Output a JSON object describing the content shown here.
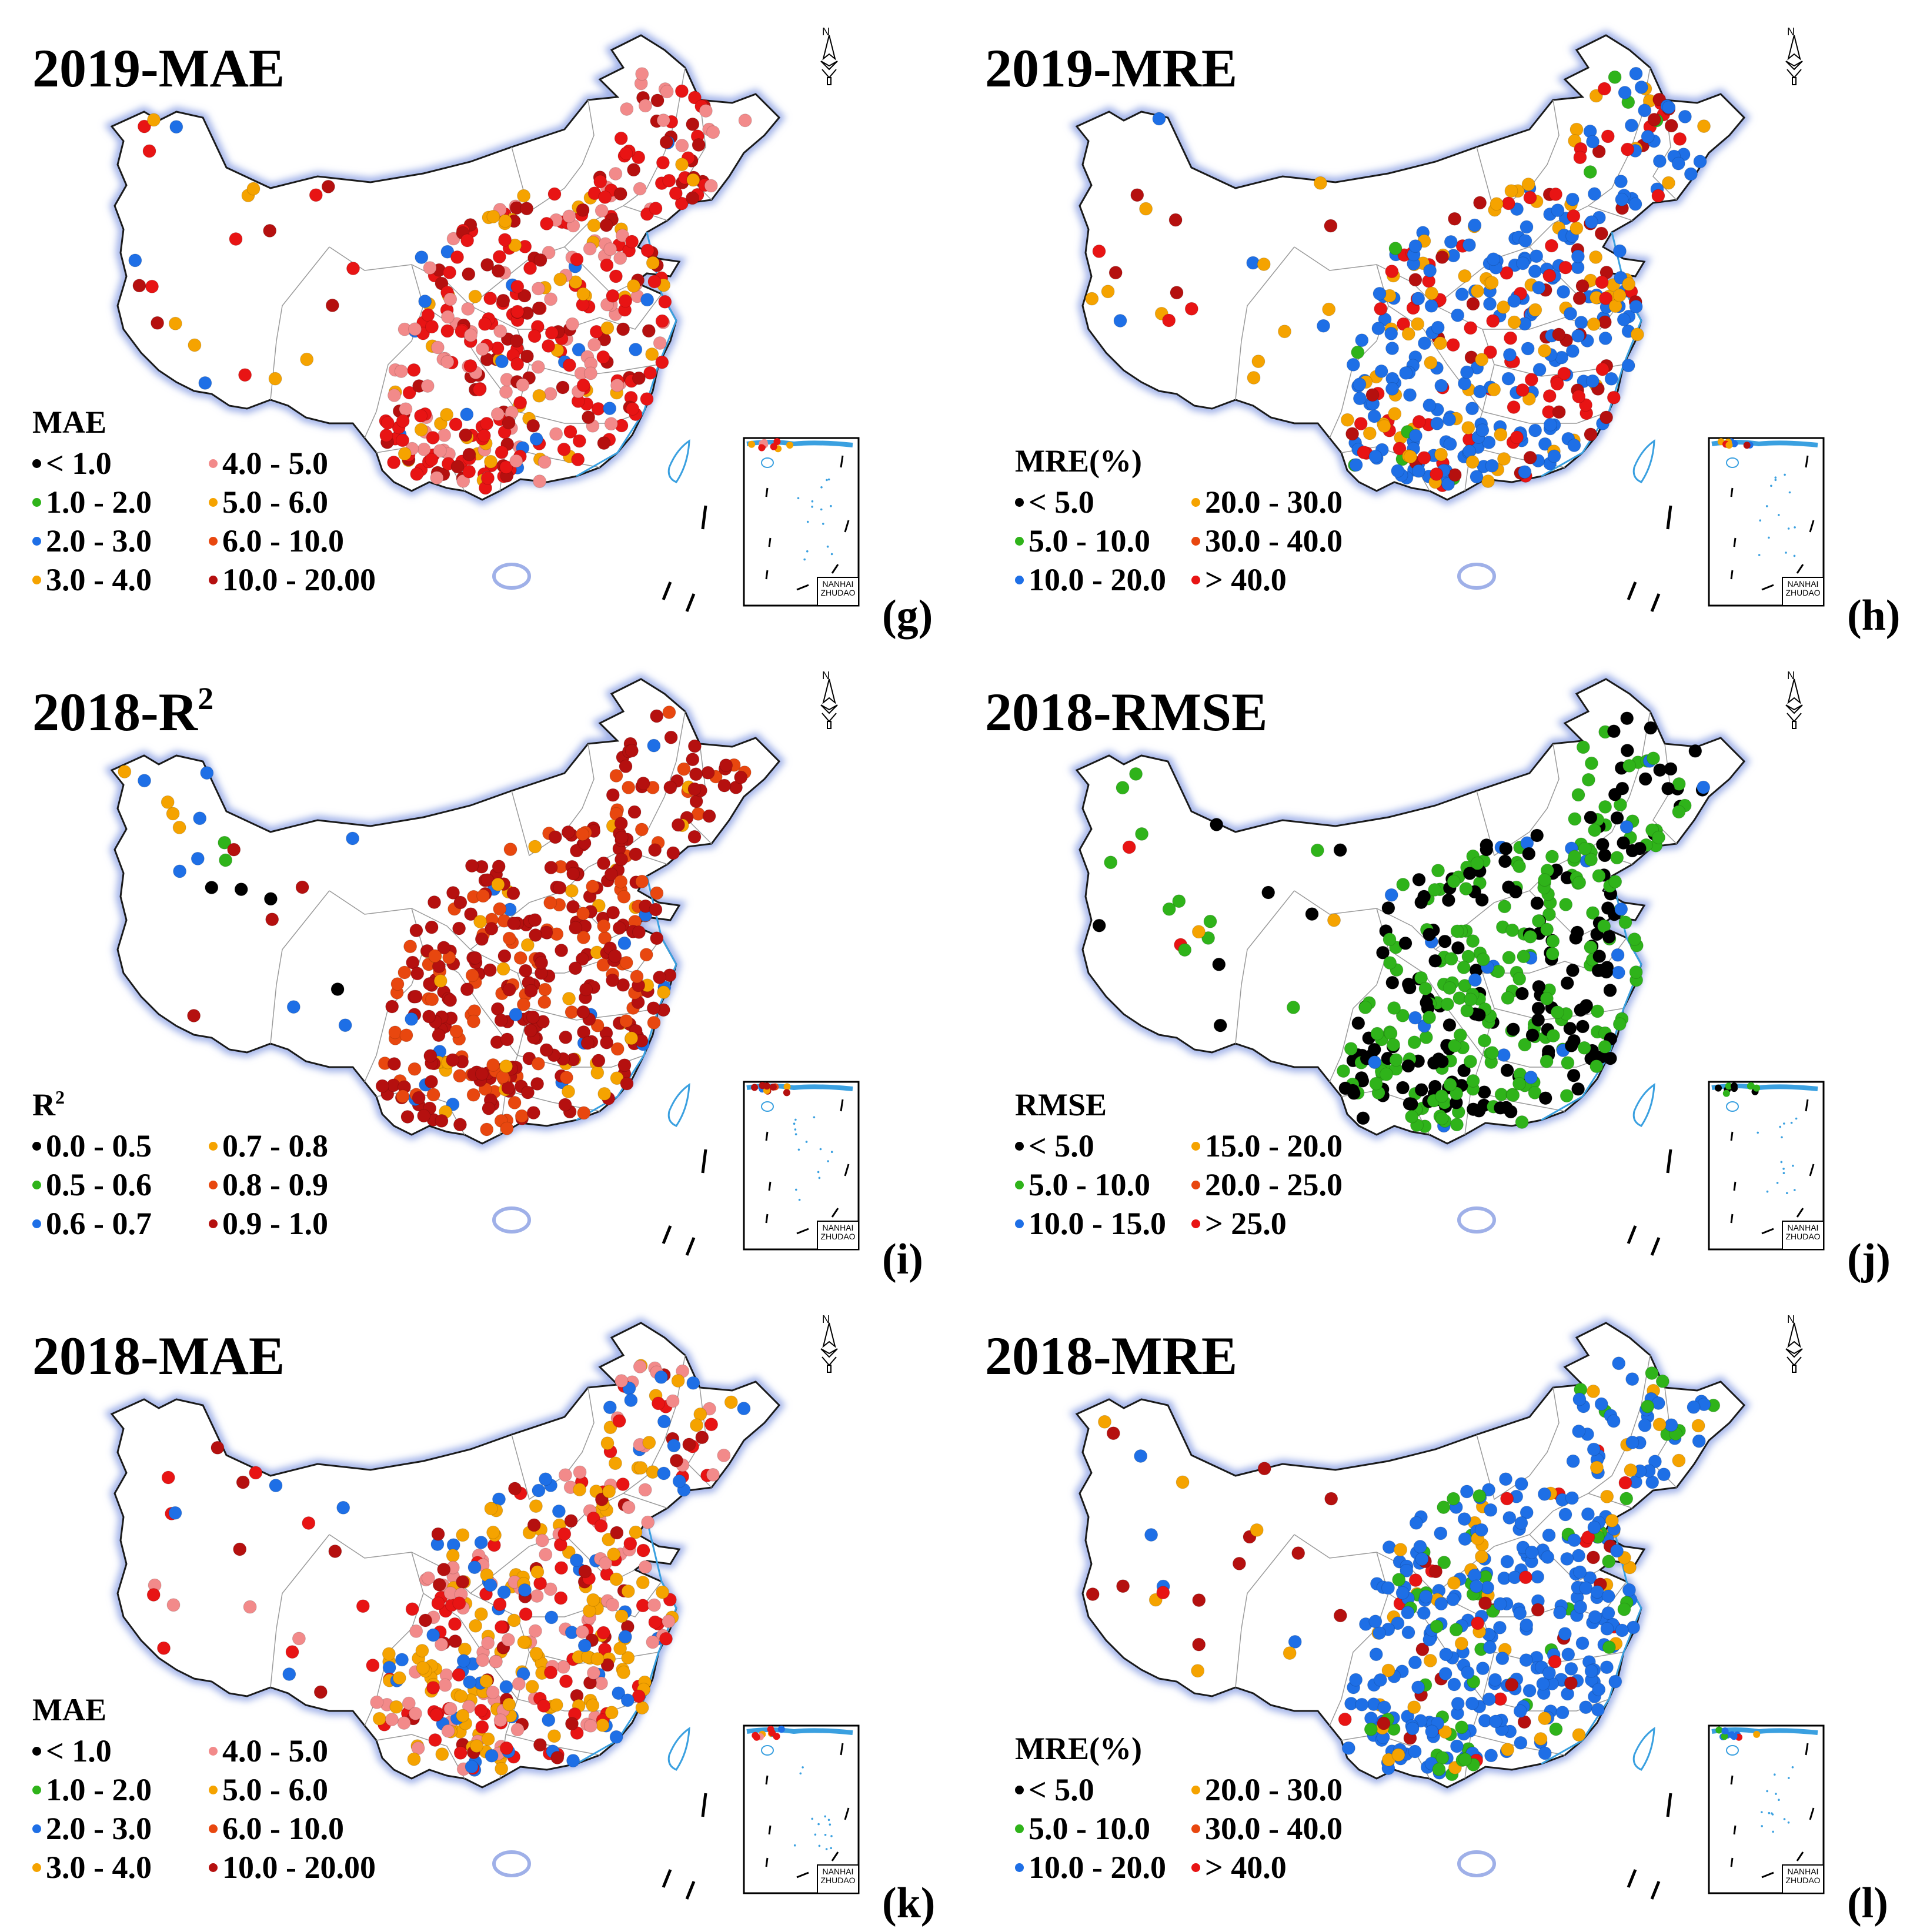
{
  "colors": {
    "black": "#000000",
    "green": "#2fb31a",
    "blue": "#1e6fe6",
    "orange": "#f5a300",
    "pink": "#f28a8a",
    "redorange": "#e8470f",
    "red": "#e81414",
    "darkred": "#b5100f",
    "border_glow": "#9fb0e8",
    "coast": "#3aa0e0"
  },
  "inset_label": {
    "line1": "NANHAI",
    "line2": "ZHUDAO"
  },
  "north_arrow_letter": "N",
  "panels": [
    {
      "id": "2019-mae",
      "title": "2019-MAE",
      "title_sup": "",
      "label": "(g)",
      "legend_title": "MAE",
      "legend_title_sup": "",
      "legend": [
        {
          "text": "< 1.0",
          "color": "black"
        },
        {
          "text": "1.0 - 2.0",
          "color": "green"
        },
        {
          "text": "2.0 - 3.0",
          "color": "blue"
        },
        {
          "text": "3.0 - 4.0",
          "color": "orange"
        },
        {
          "text": "4.0 - 5.0",
          "color": "pink"
        },
        {
          "text": "5.0 - 6.0",
          "color": "orange"
        },
        {
          "text": "6.0 - 10.0",
          "color": "redorange"
        },
        {
          "text": "10.0 - 20.00",
          "color": "darkred"
        }
      ],
      "dot_mix": {
        "red": 0.35,
        "darkred": 0.2,
        "pink": 0.25,
        "orange": 0.15,
        "blue": 0.05
      },
      "west_mix": {
        "red": 0.35,
        "orange": 0.25,
        "darkred": 0.2,
        "blue": 0.2
      }
    },
    {
      "id": "2019-mre",
      "title": "2019-MRE",
      "title_sup": "",
      "label": "(h)",
      "legend_title": "MRE(%)",
      "legend_title_sup": "",
      "legend": [
        {
          "text": "< 5.0",
          "color": "black"
        },
        {
          "text": "5.0 - 10.0",
          "color": "green"
        },
        {
          "text": "10.0 - 20.0",
          "color": "blue"
        },
        {
          "text": "20.0 - 30.0",
          "color": "orange"
        },
        {
          "text": "30.0 - 40.0",
          "color": "redorange"
        },
        {
          "text": "> 40.0",
          "color": "red"
        }
      ],
      "dot_mix": {
        "blue": 0.5,
        "red": 0.2,
        "orange": 0.18,
        "darkred": 0.08,
        "green": 0.04
      },
      "west_mix": {
        "darkred": 0.45,
        "orange": 0.35,
        "blue": 0.1,
        "red": 0.1
      }
    },
    {
      "id": "2018-r2",
      "title": "2018-R",
      "title_sup": "2",
      "label": "(i)",
      "legend_title": "R",
      "legend_title_sup": "2",
      "legend": [
        {
          "text": "0.0 - 0.5",
          "color": "black"
        },
        {
          "text": "0.5 - 0.6",
          "color": "green"
        },
        {
          "text": "0.6 - 0.7",
          "color": "blue"
        },
        {
          "text": "0.7 - 0.8",
          "color": "orange"
        },
        {
          "text": "0.8 - 0.9",
          "color": "redorange"
        },
        {
          "text": "0.9 - 1.0",
          "color": "darkred"
        }
      ],
      "dot_mix": {
        "darkred": 0.62,
        "redorange": 0.25,
        "orange": 0.1,
        "blue": 0.03
      },
      "west_mix": {
        "black": 0.25,
        "green": 0.2,
        "blue": 0.2,
        "orange": 0.15,
        "darkred": 0.2
      }
    },
    {
      "id": "2018-rmse",
      "title": "2018-RMSE",
      "title_sup": "",
      "label": "(j)",
      "legend_title": "RMSE",
      "legend_title_sup": "",
      "legend": [
        {
          "text": "< 5.0",
          "color": "black"
        },
        {
          "text": "5.0 - 10.0",
          "color": "green"
        },
        {
          "text": "10.0 - 15.0",
          "color": "blue"
        },
        {
          "text": "15.0 - 20.0",
          "color": "orange"
        },
        {
          "text": "20.0 - 25.0",
          "color": "redorange"
        },
        {
          "text": "> 25.0",
          "color": "red"
        }
      ],
      "dot_mix": {
        "green": 0.55,
        "black": 0.4,
        "blue": 0.05
      },
      "west_mix": {
        "green": 0.45,
        "black": 0.25,
        "blue": 0.1,
        "red": 0.15,
        "orange": 0.05
      }
    },
    {
      "id": "2018-mae",
      "title": "2018-MAE",
      "title_sup": "",
      "label": "(k)",
      "legend_title": "MAE",
      "legend_title_sup": "",
      "legend": [
        {
          "text": "< 1.0",
          "color": "black"
        },
        {
          "text": "1.0 - 2.0",
          "color": "green"
        },
        {
          "text": "2.0 - 3.0",
          "color": "blue"
        },
        {
          "text": "3.0 - 4.0",
          "color": "orange"
        },
        {
          "text": "4.0 - 5.0",
          "color": "pink"
        },
        {
          "text": "5.0 - 6.0",
          "color": "orange"
        },
        {
          "text": "6.0 - 10.0",
          "color": "redorange"
        },
        {
          "text": "10.0 - 20.00",
          "color": "darkred"
        }
      ],
      "dot_mix": {
        "orange": 0.35,
        "pink": 0.25,
        "red": 0.2,
        "blue": 0.12,
        "darkred": 0.08
      },
      "west_mix": {
        "red": 0.4,
        "darkred": 0.3,
        "blue": 0.15,
        "pink": 0.15
      }
    },
    {
      "id": "2018-mre",
      "title": "2018-MRE",
      "title_sup": "",
      "label": "(l)",
      "legend_title": "MRE(%)",
      "legend_title_sup": "",
      "legend": [
        {
          "text": "< 5.0",
          "color": "black"
        },
        {
          "text": "5.0 - 10.0",
          "color": "green"
        },
        {
          "text": "10.0 - 20.0",
          "color": "blue"
        },
        {
          "text": "20.0 - 30.0",
          "color": "orange"
        },
        {
          "text": "30.0 - 40.0",
          "color": "redorange"
        },
        {
          "text": "> 40.0",
          "color": "red"
        }
      ],
      "dot_mix": {
        "blue": 0.62,
        "green": 0.18,
        "orange": 0.12,
        "red": 0.05,
        "darkred": 0.03
      },
      "west_mix": {
        "darkred": 0.4,
        "orange": 0.25,
        "blue": 0.25,
        "red": 0.1
      }
    }
  ]
}
